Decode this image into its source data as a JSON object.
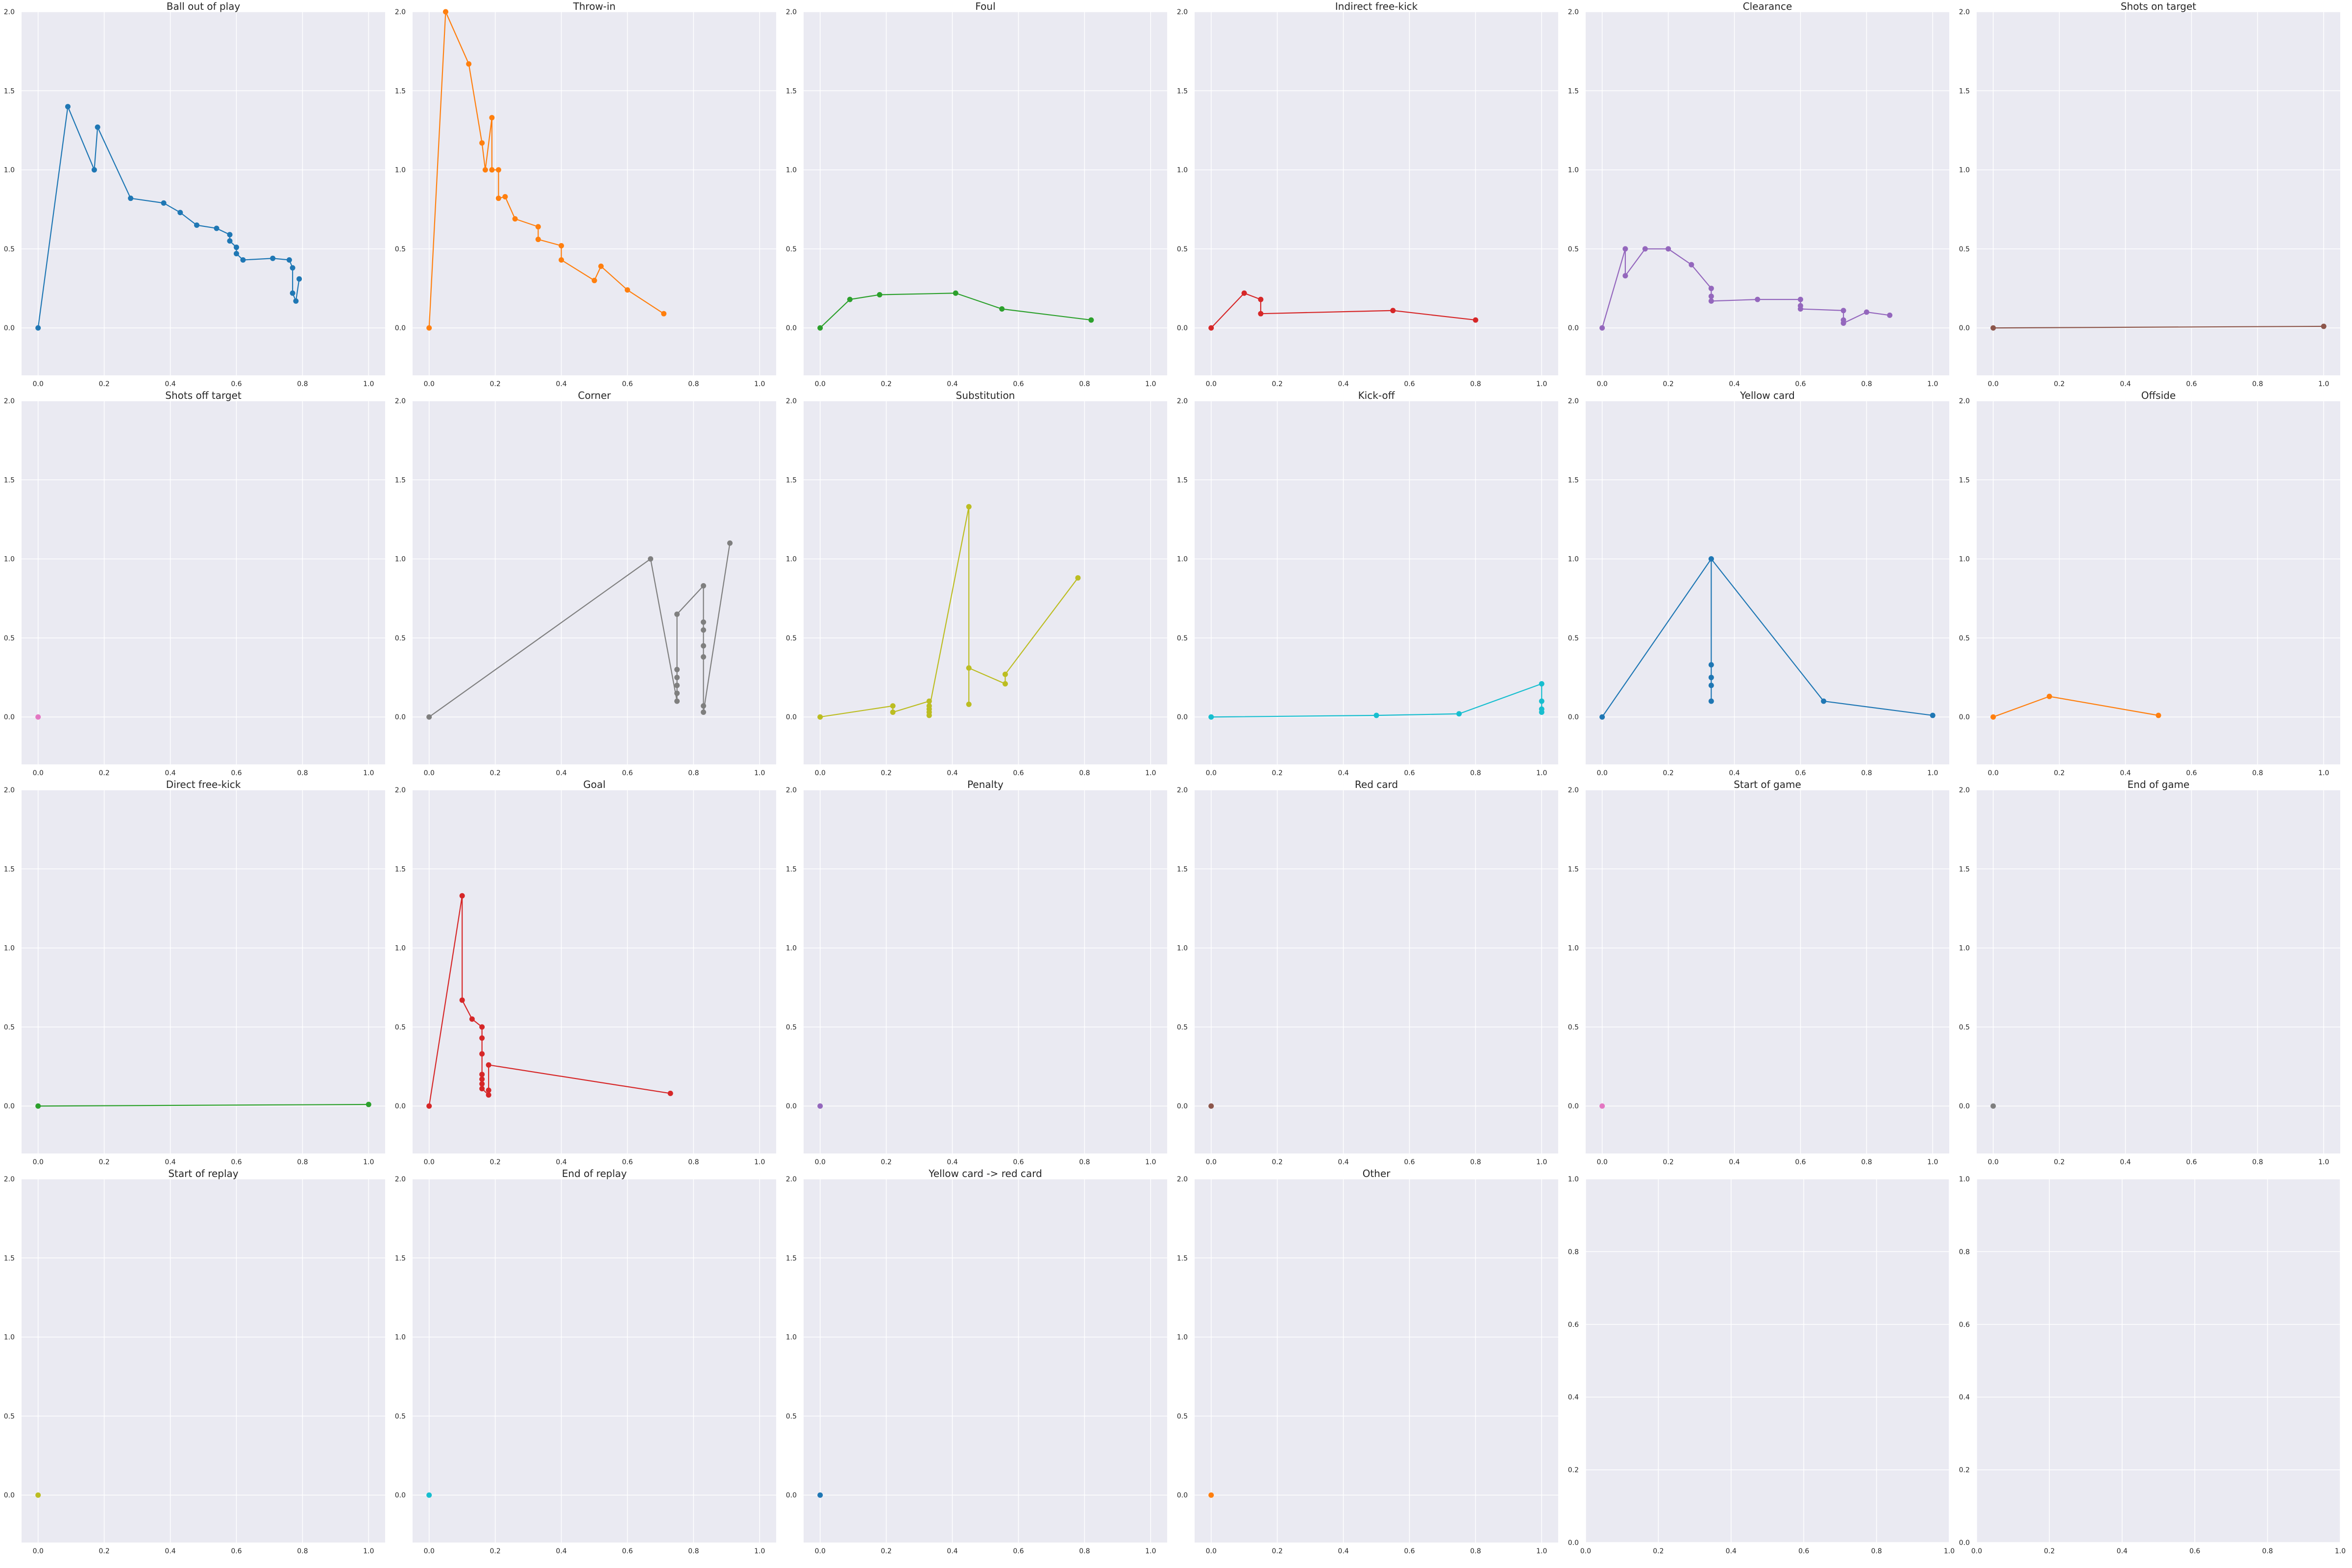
{
  "chart_data": [
    {
      "type": "line",
      "title": "Ball out of play",
      "color": "#1f77b4",
      "xlim": [
        -0.05,
        1.05
      ],
      "ylim": [
        -0.3,
        2.0
      ],
      "xticks": [
        "0.0",
        "0.2",
        "0.4",
        "0.6",
        "0.8",
        "1.0"
      ],
      "yticks": [
        "0.0",
        "0.5",
        "1.0",
        "1.5",
        "2.0"
      ],
      "x": [
        0.0,
        0.09,
        0.17,
        0.18,
        0.28,
        0.38,
        0.43,
        0.48,
        0.54,
        0.58,
        0.58,
        0.6,
        0.6,
        0.62,
        0.71,
        0.76,
        0.77,
        0.77,
        0.78,
        0.79
      ],
      "y": [
        0.0,
        1.4,
        1.0,
        1.27,
        0.82,
        0.79,
        0.73,
        0.65,
        0.63,
        0.59,
        0.55,
        0.51,
        0.47,
        0.43,
        0.44,
        0.43,
        0.38,
        0.22,
        0.17,
        0.31
      ]
    },
    {
      "type": "line",
      "title": "Throw-in",
      "color": "#ff7f0e",
      "xlim": [
        -0.05,
        1.05
      ],
      "ylim": [
        -0.3,
        2.0
      ],
      "xticks": [
        "0.0",
        "0.2",
        "0.4",
        "0.6",
        "0.8",
        "1.0"
      ],
      "yticks": [
        "0.0",
        "0.5",
        "1.0",
        "1.5",
        "2.0"
      ],
      "x": [
        0.0,
        0.05,
        0.12,
        0.16,
        0.17,
        0.19,
        0.19,
        0.21,
        0.21,
        0.23,
        0.26,
        0.33,
        0.33,
        0.4,
        0.4,
        0.5,
        0.52,
        0.6,
        0.71
      ],
      "y": [
        0.0,
        2.0,
        1.67,
        1.17,
        1.0,
        1.33,
        1.0,
        1.0,
        0.82,
        0.83,
        0.69,
        0.64,
        0.56,
        0.52,
        0.43,
        0.3,
        0.39,
        0.24,
        0.09
      ]
    },
    {
      "type": "line",
      "title": "Foul",
      "color": "#2ca02c",
      "xlim": [
        -0.05,
        1.05
      ],
      "ylim": [
        -0.3,
        2.0
      ],
      "xticks": [
        "0.0",
        "0.2",
        "0.4",
        "0.6",
        "0.8",
        "1.0"
      ],
      "yticks": [
        "0.0",
        "0.5",
        "1.0",
        "1.5",
        "2.0"
      ],
      "x": [
        0.0,
        0.09,
        0.18,
        0.41,
        0.55,
        0.82
      ],
      "y": [
        0.0,
        0.18,
        0.21,
        0.22,
        0.12,
        0.05
      ]
    },
    {
      "type": "line",
      "title": "Indirect free-kick",
      "color": "#d62728",
      "xlim": [
        -0.05,
        1.05
      ],
      "ylim": [
        -0.3,
        2.0
      ],
      "xticks": [
        "0.0",
        "0.2",
        "0.4",
        "0.6",
        "0.8",
        "1.0"
      ],
      "yticks": [
        "0.0",
        "0.5",
        "1.0",
        "1.5",
        "2.0"
      ],
      "x": [
        0.0,
        0.1,
        0.15,
        0.15,
        0.55,
        0.8
      ],
      "y": [
        0.0,
        0.22,
        0.18,
        0.09,
        0.11,
        0.05
      ]
    },
    {
      "type": "line",
      "title": "Clearance",
      "color": "#9467bd",
      "xlim": [
        -0.05,
        1.05
      ],
      "ylim": [
        -0.3,
        2.0
      ],
      "xticks": [
        "0.0",
        "0.2",
        "0.4",
        "0.6",
        "0.8",
        "1.0"
      ],
      "yticks": [
        "0.0",
        "0.5",
        "1.0",
        "1.5",
        "2.0"
      ],
      "x": [
        0.0,
        0.07,
        0.07,
        0.13,
        0.2,
        0.27,
        0.33,
        0.33,
        0.33,
        0.47,
        0.6,
        0.6,
        0.6,
        0.73,
        0.73,
        0.73,
        0.8,
        0.87
      ],
      "y": [
        0.0,
        0.5,
        0.33,
        0.5,
        0.5,
        0.4,
        0.25,
        0.2,
        0.17,
        0.18,
        0.18,
        0.14,
        0.12,
        0.11,
        0.05,
        0.03,
        0.1,
        0.08
      ]
    },
    {
      "type": "line",
      "title": "Shots on target",
      "color": "#8c564b",
      "xlim": [
        -0.05,
        1.05
      ],
      "ylim": [
        -0.3,
        2.0
      ],
      "xticks": [
        "0.0",
        "0.2",
        "0.4",
        "0.6",
        "0.8",
        "1.0"
      ],
      "yticks": [
        "0.0",
        "0.5",
        "1.0",
        "1.5",
        "2.0"
      ],
      "x": [
        0.0,
        1.0
      ],
      "y": [
        0.0,
        0.01
      ]
    },
    {
      "type": "line",
      "title": "Shots off target",
      "color": "#e377c2",
      "xlim": [
        -0.05,
        1.05
      ],
      "ylim": [
        -0.3,
        2.0
      ],
      "xticks": [
        "0.0",
        "0.2",
        "0.4",
        "0.6",
        "0.8",
        "1.0"
      ],
      "yticks": [
        "0.0",
        "0.5",
        "1.0",
        "1.5",
        "2.0"
      ],
      "x": [
        0.0
      ],
      "y": [
        0.0
      ]
    },
    {
      "type": "line",
      "title": "Corner",
      "color": "#7f7f7f",
      "xlim": [
        -0.05,
        1.05
      ],
      "ylim": [
        -0.3,
        2.0
      ],
      "xticks": [
        "0.0",
        "0.2",
        "0.4",
        "0.6",
        "0.8",
        "1.0"
      ],
      "yticks": [
        "0.0",
        "0.5",
        "1.0",
        "1.5",
        "2.0"
      ],
      "x": [
        0.0,
        0.67,
        0.75,
        0.75,
        0.75,
        0.75,
        0.75,
        0.75,
        0.83,
        0.83,
        0.83,
        0.83,
        0.83,
        0.83,
        0.83,
        0.91
      ],
      "y": [
        0.0,
        1.0,
        0.1,
        0.3,
        0.2,
        0.15,
        0.25,
        0.65,
        0.83,
        0.6,
        0.55,
        0.45,
        0.38,
        0.07,
        0.03,
        1.1
      ]
    },
    {
      "type": "line",
      "title": "Substitution",
      "color": "#bcbd22",
      "xlim": [
        -0.05,
        1.05
      ],
      "ylim": [
        -0.3,
        2.0
      ],
      "xticks": [
        "0.0",
        "0.2",
        "0.4",
        "0.6",
        "0.8",
        "1.0"
      ],
      "yticks": [
        "0.0",
        "0.5",
        "1.0",
        "1.5",
        "2.0"
      ],
      "x": [
        0.0,
        0.22,
        0.22,
        0.33,
        0.33,
        0.33,
        0.33,
        0.33,
        0.45,
        0.45,
        0.45,
        0.56,
        0.56,
        0.78
      ],
      "y": [
        0.0,
        0.07,
        0.03,
        0.1,
        0.07,
        0.03,
        0.01,
        0.05,
        1.33,
        0.08,
        0.31,
        0.21,
        0.27,
        0.88
      ]
    },
    {
      "type": "line",
      "title": "Kick-off",
      "color": "#17becf",
      "xlim": [
        -0.05,
        1.05
      ],
      "ylim": [
        -0.3,
        2.0
      ],
      "xticks": [
        "0.0",
        "0.2",
        "0.4",
        "0.6",
        "0.8",
        "1.0"
      ],
      "yticks": [
        "0.0",
        "0.5",
        "1.0",
        "1.5",
        "2.0"
      ],
      "x": [
        0.0,
        0.5,
        0.75,
        1.0,
        1.0,
        1.0,
        1.0
      ],
      "y": [
        0.0,
        0.01,
        0.02,
        0.21,
        0.1,
        0.05,
        0.03
      ]
    },
    {
      "type": "line",
      "title": "Yellow card",
      "color": "#1f77b4",
      "xlim": [
        -0.05,
        1.05
      ],
      "ylim": [
        -0.3,
        2.0
      ],
      "xticks": [
        "0.0",
        "0.2",
        "0.4",
        "0.6",
        "0.8",
        "1.0"
      ],
      "yticks": [
        "0.0",
        "0.5",
        "1.0",
        "1.5",
        "2.0"
      ],
      "x": [
        0.0,
        0.33,
        0.33,
        0.33,
        0.33,
        0.33,
        0.33,
        0.67,
        1.0
      ],
      "y": [
        0.0,
        1.0,
        0.1,
        0.2,
        0.25,
        0.33,
        1.0,
        0.1,
        0.01
      ]
    },
    {
      "type": "line",
      "title": "Offside",
      "color": "#ff7f0e",
      "xlim": [
        -0.05,
        1.05
      ],
      "ylim": [
        -0.3,
        2.0
      ],
      "xticks": [
        "0.0",
        "0.2",
        "0.4",
        "0.6",
        "0.8",
        "1.0"
      ],
      "yticks": [
        "0.0",
        "0.5",
        "1.0",
        "1.5",
        "2.0"
      ],
      "x": [
        0.0,
        0.17,
        0.5
      ],
      "y": [
        0.0,
        0.13,
        0.01
      ]
    },
    {
      "type": "line",
      "title": "Direct free-kick",
      "color": "#2ca02c",
      "xlim": [
        -0.05,
        1.05
      ],
      "ylim": [
        -0.3,
        2.0
      ],
      "xticks": [
        "0.0",
        "0.2",
        "0.4",
        "0.6",
        "0.8",
        "1.0"
      ],
      "yticks": [
        "0.0",
        "0.5",
        "1.0",
        "1.5",
        "2.0"
      ],
      "x": [
        0.0,
        1.0
      ],
      "y": [
        0.0,
        0.01
      ]
    },
    {
      "type": "line",
      "title": "Goal",
      "color": "#d62728",
      "xlim": [
        -0.05,
        1.05
      ],
      "ylim": [
        -0.3,
        2.0
      ],
      "xticks": [
        "0.0",
        "0.2",
        "0.4",
        "0.6",
        "0.8",
        "1.0"
      ],
      "yticks": [
        "0.0",
        "0.5",
        "1.0",
        "1.5",
        "2.0"
      ],
      "x": [
        0.0,
        0.1,
        0.1,
        0.13,
        0.16,
        0.16,
        0.16,
        0.16,
        0.16,
        0.16,
        0.16,
        0.18,
        0.18,
        0.18,
        0.73
      ],
      "y": [
        0.0,
        1.33,
        0.67,
        0.55,
        0.5,
        0.43,
        0.33,
        0.2,
        0.17,
        0.14,
        0.11,
        0.07,
        0.1,
        0.26,
        0.08
      ]
    },
    {
      "type": "line",
      "title": "Penalty",
      "color": "#9467bd",
      "xlim": [
        -0.05,
        1.05
      ],
      "ylim": [
        -0.3,
        2.0
      ],
      "xticks": [
        "0.0",
        "0.2",
        "0.4",
        "0.6",
        "0.8",
        "1.0"
      ],
      "yticks": [
        "0.0",
        "0.5",
        "1.0",
        "1.5",
        "2.0"
      ],
      "x": [
        0.0
      ],
      "y": [
        0.0
      ]
    },
    {
      "type": "line",
      "title": "Red card",
      "color": "#8c564b",
      "xlim": [
        -0.05,
        1.05
      ],
      "ylim": [
        -0.3,
        2.0
      ],
      "xticks": [
        "0.0",
        "0.2",
        "0.4",
        "0.6",
        "0.8",
        "1.0"
      ],
      "yticks": [
        "0.0",
        "0.5",
        "1.0",
        "1.5",
        "2.0"
      ],
      "x": [
        0.0
      ],
      "y": [
        0.0
      ]
    },
    {
      "type": "line",
      "title": "Start of game",
      "color": "#e377c2",
      "xlim": [
        -0.05,
        1.05
      ],
      "ylim": [
        -0.3,
        2.0
      ],
      "xticks": [
        "0.0",
        "0.2",
        "0.4",
        "0.6",
        "0.8",
        "1.0"
      ],
      "yticks": [
        "0.0",
        "0.5",
        "1.0",
        "1.5",
        "2.0"
      ],
      "x": [
        0.0
      ],
      "y": [
        0.0
      ]
    },
    {
      "type": "line",
      "title": "End of game",
      "color": "#7f7f7f",
      "xlim": [
        -0.05,
        1.05
      ],
      "ylim": [
        -0.3,
        2.0
      ],
      "xticks": [
        "0.0",
        "0.2",
        "0.4",
        "0.6",
        "0.8",
        "1.0"
      ],
      "yticks": [
        "0.0",
        "0.5",
        "1.0",
        "1.5",
        "2.0"
      ],
      "x": [
        0.0
      ],
      "y": [
        0.0
      ]
    },
    {
      "type": "line",
      "title": "Start of replay",
      "color": "#bcbd22",
      "xlim": [
        -0.05,
        1.05
      ],
      "ylim": [
        -0.3,
        2.0
      ],
      "xticks": [
        "0.0",
        "0.2",
        "0.4",
        "0.6",
        "0.8",
        "1.0"
      ],
      "yticks": [
        "0.0",
        "0.5",
        "1.0",
        "1.5",
        "2.0"
      ],
      "x": [
        0.0
      ],
      "y": [
        0.0
      ]
    },
    {
      "type": "line",
      "title": "End of replay",
      "color": "#17becf",
      "xlim": [
        -0.05,
        1.05
      ],
      "ylim": [
        -0.3,
        2.0
      ],
      "xticks": [
        "0.0",
        "0.2",
        "0.4",
        "0.6",
        "0.8",
        "1.0"
      ],
      "yticks": [
        "0.0",
        "0.5",
        "1.0",
        "1.5",
        "2.0"
      ],
      "x": [
        0.0
      ],
      "y": [
        0.0
      ]
    },
    {
      "type": "line",
      "title": "Yellow card -> red card",
      "color": "#1f77b4",
      "xlim": [
        -0.05,
        1.05
      ],
      "ylim": [
        -0.3,
        2.0
      ],
      "xticks": [
        "0.0",
        "0.2",
        "0.4",
        "0.6",
        "0.8",
        "1.0"
      ],
      "yticks": [
        "0.0",
        "0.5",
        "1.0",
        "1.5",
        "2.0"
      ],
      "x": [
        0.0
      ],
      "y": [
        0.0
      ]
    },
    {
      "type": "line",
      "title": "Other",
      "color": "#ff7f0e",
      "xlim": [
        -0.05,
        1.05
      ],
      "ylim": [
        -0.3,
        2.0
      ],
      "xticks": [
        "0.0",
        "0.2",
        "0.4",
        "0.6",
        "0.8",
        "1.0"
      ],
      "yticks": [
        "0.0",
        "0.5",
        "1.0",
        "1.5",
        "2.0"
      ],
      "x": [
        0.0
      ],
      "y": [
        0.0
      ]
    },
    {
      "type": "line",
      "title": "",
      "color": "#1f77b4",
      "xlim": [
        0.0,
        1.0
      ],
      "ylim": [
        0.0,
        1.0
      ],
      "xticks": [
        "0.0",
        "0.2",
        "0.4",
        "0.6",
        "0.8",
        "1.0"
      ],
      "yticks": [
        "0.0",
        "0.2",
        "0.4",
        "0.6",
        "0.8",
        "1.0"
      ],
      "x": [],
      "y": []
    },
    {
      "type": "line",
      "title": "",
      "color": "#1f77b4",
      "xlim": [
        0.0,
        1.0
      ],
      "ylim": [
        0.0,
        1.0
      ],
      "xticks": [
        "0.0",
        "0.2",
        "0.4",
        "0.6",
        "0.8",
        "1.0"
      ],
      "yticks": [
        "0.0",
        "0.2",
        "0.4",
        "0.6",
        "0.8",
        "1.0"
      ],
      "x": [],
      "y": []
    }
  ]
}
